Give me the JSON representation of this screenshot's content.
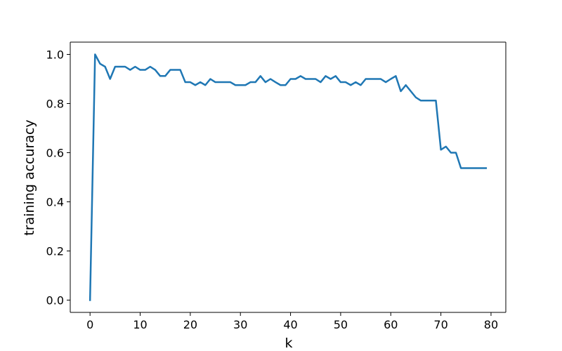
{
  "chart_data": {
    "type": "line",
    "title": "",
    "xlabel": "k",
    "ylabel": "training accuracy",
    "xlim": [
      -3.95,
      82.95
    ],
    "ylim": [
      -0.05,
      1.05
    ],
    "xticks": [
      0,
      10,
      20,
      30,
      40,
      50,
      60,
      70,
      80
    ],
    "yticks": [
      0.0,
      0.2,
      0.4,
      0.6,
      0.8,
      1.0
    ],
    "xtick_labels": [
      "0",
      "10",
      "20",
      "30",
      "40",
      "50",
      "60",
      "70",
      "80"
    ],
    "ytick_labels": [
      "0.0",
      "0.2",
      "0.4",
      "0.6",
      "0.8",
      "1.0"
    ],
    "grid": false,
    "line_color": "#1f77b4",
    "series": [
      {
        "x": [
          0,
          1,
          2,
          3,
          4,
          5,
          6,
          7,
          8,
          9,
          10,
          11,
          12,
          13,
          14,
          15,
          16,
          17,
          18,
          19,
          20,
          21,
          22,
          23,
          24,
          25,
          26,
          27,
          28,
          29,
          30,
          31,
          32,
          33,
          34,
          35,
          36,
          37,
          38,
          39,
          40,
          41,
          42,
          43,
          44,
          45,
          46,
          47,
          48,
          49,
          50,
          51,
          52,
          53,
          54,
          55,
          56,
          57,
          58,
          59,
          60,
          61,
          62,
          63,
          64,
          65,
          66,
          67,
          68,
          69,
          70,
          71,
          72,
          73,
          74,
          75,
          76,
          77,
          78,
          79
        ],
        "values": [
          0.0,
          1.0,
          0.962,
          0.95,
          0.9,
          0.95,
          0.95,
          0.95,
          0.937,
          0.95,
          0.937,
          0.937,
          0.95,
          0.937,
          0.912,
          0.912,
          0.937,
          0.937,
          0.937,
          0.887,
          0.887,
          0.875,
          0.887,
          0.875,
          0.9,
          0.887,
          0.887,
          0.887,
          0.887,
          0.875,
          0.875,
          0.875,
          0.887,
          0.887,
          0.912,
          0.887,
          0.9,
          0.887,
          0.875,
          0.875,
          0.9,
          0.9,
          0.912,
          0.9,
          0.9,
          0.9,
          0.887,
          0.912,
          0.9,
          0.912,
          0.887,
          0.887,
          0.875,
          0.887,
          0.875,
          0.9,
          0.9,
          0.9,
          0.9,
          0.887,
          0.9,
          0.912,
          0.85,
          0.875,
          0.85,
          0.825,
          0.812,
          0.812,
          0.812,
          0.812,
          0.612,
          0.625,
          0.6,
          0.6,
          0.537,
          0.537,
          0.537,
          0.537,
          0.537,
          0.537
        ]
      }
    ]
  }
}
